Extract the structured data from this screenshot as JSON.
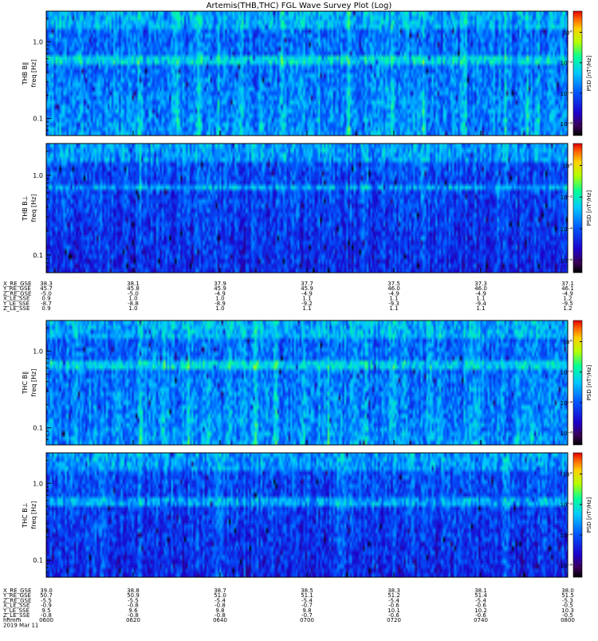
{
  "title": "Artemis(THB,THC) FGL Wave Survey Plot (Log)",
  "chart_data": [
    {
      "type": "heatmap",
      "panel": "THB B∥",
      "ylabel": [
        "THB B∥",
        "freq [Hz]"
      ],
      "zlabel": "PSD [nT²/Hz]",
      "y_scale": "log",
      "ylim": [
        0.06,
        2.5
      ],
      "y_ticks": [
        "1.0",
        "0.1"
      ],
      "z_ticks": [
        "10°",
        "10⁻²",
        "10⁻⁴",
        "10⁻⁶"
      ],
      "colors": {
        "hot_stripes": "#9ef05a",
        "base": "#2f6bff"
      },
      "seed": 11,
      "vstripes": [
        18,
        25,
        29,
        33,
        37,
        41,
        45,
        52,
        58,
        66,
        72,
        80,
        88,
        92,
        94
      ],
      "hband": [
        0.34,
        0.41
      ]
    },
    {
      "type": "heatmap",
      "panel": "THB B⊥",
      "ylabel": [
        "THB B⊥",
        "freq [Hz]"
      ],
      "zlabel": "PSD [nT²/Hz]",
      "y_scale": "log",
      "ylim": [
        0.06,
        2.5
      ],
      "y_ticks": [
        "1.0",
        "0.1"
      ],
      "z_ticks": [
        "10°",
        "10⁻²",
        "10⁻⁴",
        "10⁻⁶"
      ],
      "colors": {
        "base": "#1f3fe0"
      },
      "seed": 23,
      "vstripes": [
        18,
        34,
        47,
        61,
        72,
        86,
        94
      ],
      "hband": [
        0.3,
        0.36
      ]
    },
    {
      "type": "heatmap",
      "panel": "THC B∥",
      "ylabel": [
        "THC B∥",
        "freq [Hz]"
      ],
      "zlabel": "PSD [nT²/Hz]",
      "y_scale": "log",
      "ylim": [
        0.06,
        2.5
      ],
      "y_ticks": [
        "1.0",
        "0.1"
      ],
      "z_ticks": [
        "10°",
        "10⁻²",
        "10⁻⁴",
        "10⁻⁶"
      ],
      "colors": {
        "base": "#2a63ff"
      },
      "seed": 37,
      "vstripes": [
        18,
        22,
        27,
        31,
        35,
        40,
        44,
        49,
        54,
        61,
        66,
        75,
        82,
        90,
        93
      ],
      "hband": [
        0.32,
        0.38
      ]
    },
    {
      "type": "heatmap",
      "panel": "THC B⊥",
      "ylabel": [
        "THC B⊥",
        "freq [Hz]"
      ],
      "zlabel": "PSD [nT²/Hz]",
      "y_scale": "log",
      "ylim": [
        0.06,
        2.5
      ],
      "y_ticks": [
        "1.0",
        "0.1"
      ],
      "z_ticks": [
        "10°",
        "10⁻²",
        "10⁻⁴",
        "10⁻⁶"
      ],
      "colors": {
        "base": "#1e45d6"
      },
      "seed": 53,
      "vstripes": [
        18,
        33,
        56,
        72,
        88
      ],
      "hband": [
        0.36,
        0.42
      ]
    }
  ],
  "ephemeris_thb": {
    "labels": [
      "X_RE_GSE",
      "Y_RE_GSE",
      "Z_RE_GSE",
      "X_LE_SSE",
      "Y_LE_SSE",
      "Z_LE_SSE"
    ],
    "rows": [
      [
        "38.3",
        "38.1",
        "37.9",
        "37.7",
        "37.5",
        "37.3",
        "37.1"
      ],
      [
        "45.7",
        "45.8",
        "45.9",
        "45.9",
        "46.0",
        "46.0",
        "46.1"
      ],
      [
        "-5.0",
        "-5.0",
        "-4.9",
        "-4.9",
        "-4.9",
        "-4.9",
        "-4.9"
      ],
      [
        "0.9",
        "1.0",
        "1.0",
        "1.1",
        "1.1",
        "1.1",
        "1.2"
      ],
      [
        "-8.7",
        "-8.8",
        "-8.9",
        "-9.2",
        "-9.3",
        "-9.4",
        "-9.5"
      ],
      [
        "0.9",
        "1.0",
        "1.0",
        "1.1",
        "1.1",
        "1.1",
        "1.2"
      ]
    ]
  },
  "ephemeris_thc": {
    "labels": [
      "X_RE_GSE",
      "Y_RE_GSE",
      "Z_RE_GSE",
      "X_LE_SSE",
      "Y_LE_SSE",
      "Z_LE_SSE",
      "hhmm",
      "2019 Mar 11"
    ],
    "rows": [
      [
        "39.0",
        "38.8",
        "38.7",
        "38.5",
        "38.3",
        "38.1",
        "38.0"
      ],
      [
        "50.7",
        "50.9",
        "51.0",
        "51.1",
        "51.2",
        "51.4",
        "51.5"
      ],
      [
        "-5.5",
        "-5.5",
        "-5.4",
        "-5.4",
        "-5.4",
        "-5.4",
        "-5.3"
      ],
      [
        "-0.9",
        "-0.8",
        "-0.8",
        "-0.7",
        "-0.6",
        "-0.6",
        "-0.5"
      ],
      [
        "9.5",
        "9.6",
        "9.8",
        "9.8",
        "10.1",
        "10.2",
        "10.3"
      ],
      [
        "-0.8",
        "-0.8",
        "-0.8",
        "-0.7",
        "-0.6",
        "-0.6",
        "-0.5"
      ],
      [
        "0600",
        "0620",
        "0640",
        "0700",
        "0720",
        "0740",
        "0800"
      ],
      [
        "",
        "",
        "",
        "",
        "",
        "",
        ""
      ]
    ]
  }
}
